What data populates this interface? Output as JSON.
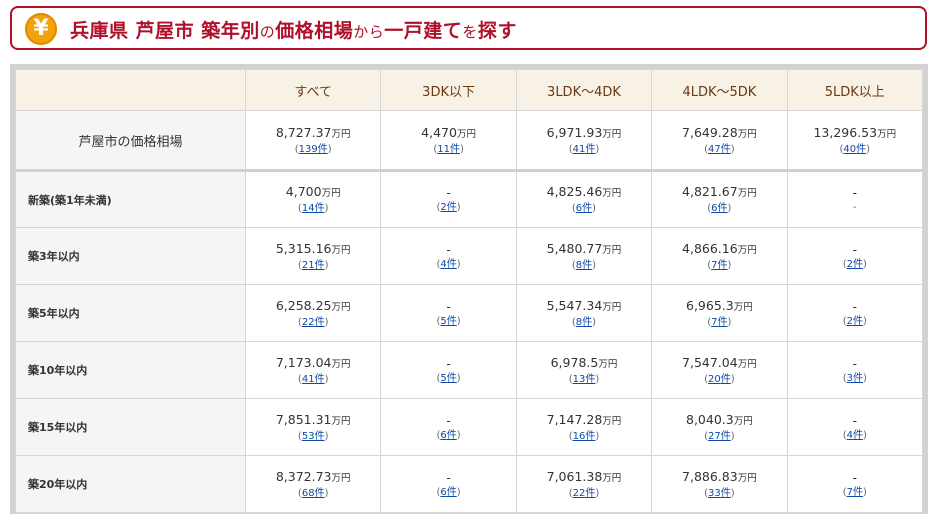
{
  "header": {
    "icon": "yen-icon",
    "title_bold_1": "兵庫県 芦屋市 築年別",
    "title_small_1": "の",
    "title_bold_2": "価格相場",
    "title_small_2": "から",
    "title_bold_3": "一戸建て",
    "title_small_3": "を",
    "title_bold_4": "探す",
    "accent_color": "#b0102a"
  },
  "table": {
    "columns": [
      "",
      "すべて",
      "3DK以下",
      "3LDK～4DK",
      "4LDK～5DK",
      "5LDK以上"
    ],
    "unit": "万円",
    "count_suffix": "件",
    "rows": [
      {
        "label": "芦屋市の価格相場",
        "cells": [
          {
            "price": "8,727.37",
            "count": "139"
          },
          {
            "price": "4,470",
            "count": "11"
          },
          {
            "price": "6,971.93",
            "count": "41"
          },
          {
            "price": "7,649.28",
            "count": "47"
          },
          {
            "price": "13,296.53",
            "count": "40"
          }
        ]
      },
      {
        "label": "新築(築1年未満)",
        "cells": [
          {
            "price": "4,700",
            "count": "14"
          },
          {
            "price": "-",
            "count": "2"
          },
          {
            "price": "4,825.46",
            "count": "6"
          },
          {
            "price": "4,821.67",
            "count": "6"
          },
          {
            "price": "-",
            "count": "-"
          }
        ]
      },
      {
        "label": "築3年以内",
        "cells": [
          {
            "price": "5,315.16",
            "count": "21"
          },
          {
            "price": "-",
            "count": "4"
          },
          {
            "price": "5,480.77",
            "count": "8"
          },
          {
            "price": "4,866.16",
            "count": "7"
          },
          {
            "price": "-",
            "count": "2"
          }
        ]
      },
      {
        "label": "築5年以内",
        "cells": [
          {
            "price": "6,258.25",
            "count": "22"
          },
          {
            "price": "-",
            "count": "5"
          },
          {
            "price": "5,547.34",
            "count": "8"
          },
          {
            "price": "6,965.3",
            "count": "7"
          },
          {
            "price": "-",
            "count": "2"
          }
        ]
      },
      {
        "label": "築10年以内",
        "cells": [
          {
            "price": "7,173.04",
            "count": "41"
          },
          {
            "price": "-",
            "count": "5"
          },
          {
            "price": "6,978.5",
            "count": "13"
          },
          {
            "price": "7,547.04",
            "count": "20"
          },
          {
            "price": "-",
            "count": "3"
          }
        ]
      },
      {
        "label": "築15年以内",
        "cells": [
          {
            "price": "7,851.31",
            "count": "53"
          },
          {
            "price": "-",
            "count": "6"
          },
          {
            "price": "7,147.28",
            "count": "16"
          },
          {
            "price": "8,040.3",
            "count": "27"
          },
          {
            "price": "-",
            "count": "4"
          }
        ]
      },
      {
        "label": "築20年以内",
        "cells": [
          {
            "price": "8,372.73",
            "count": "68"
          },
          {
            "price": "-",
            "count": "6"
          },
          {
            "price": "7,061.38",
            "count": "22"
          },
          {
            "price": "7,886.83",
            "count": "33"
          },
          {
            "price": "-",
            "count": "7"
          }
        ]
      }
    ]
  }
}
